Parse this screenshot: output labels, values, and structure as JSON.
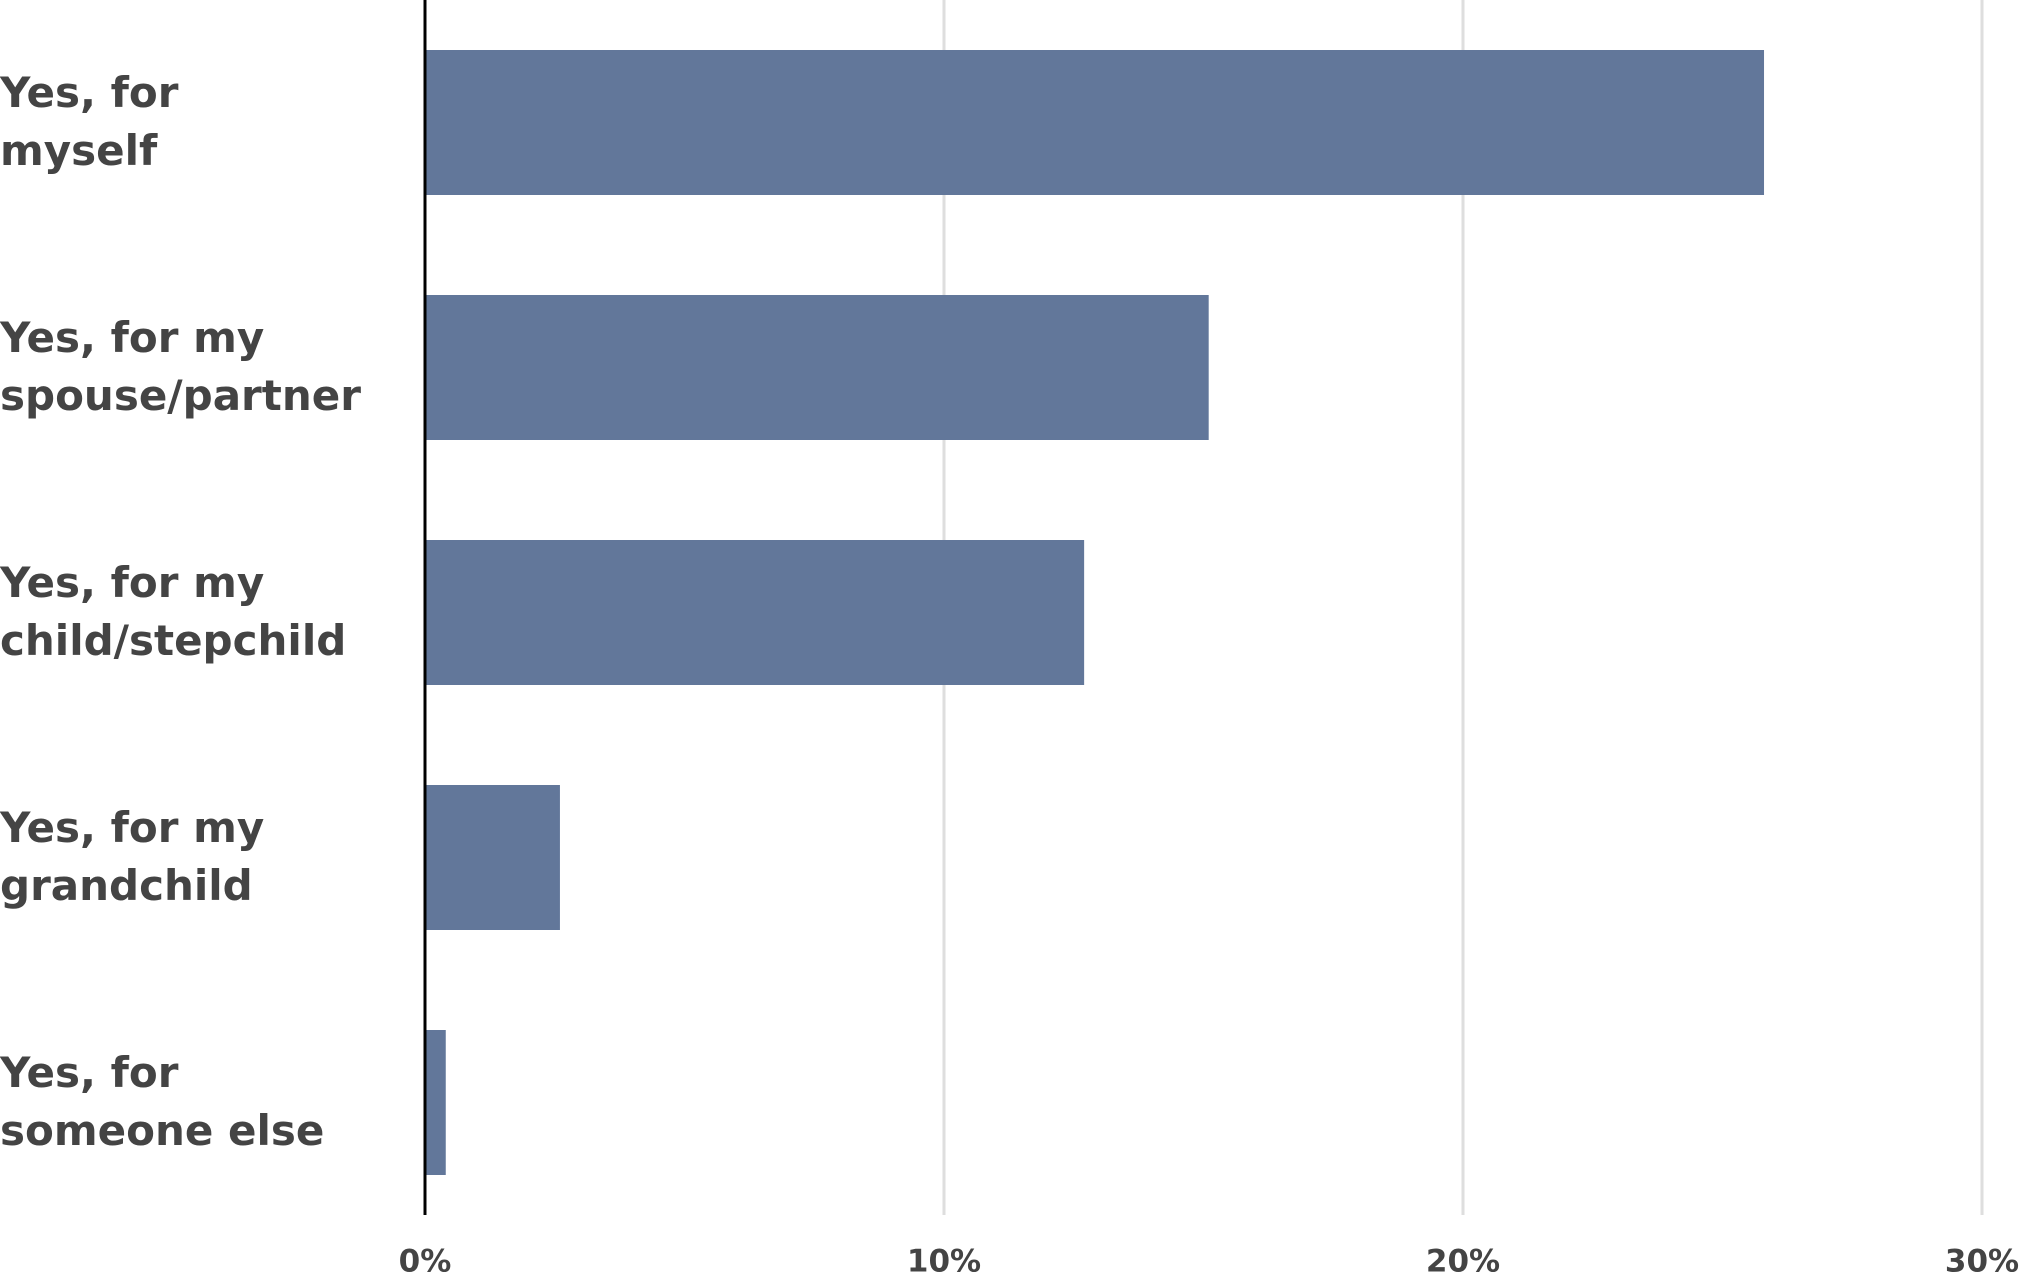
{
  "chart_data": {
    "type": "barh",
    "categories": [
      "Yes, for\nmyself",
      "Yes, for my\nspouse/partner",
      "Yes, for my\nchild/stepchild",
      "Yes, for my\ngrandchild",
      "Yes, for\nsomeone else"
    ],
    "values": [
      25.8,
      15.1,
      12.7,
      2.6,
      0.4
    ],
    "color": "#62779a",
    "xlim": [
      0,
      30
    ],
    "xticks": [
      {
        "value": 0,
        "label": "0%"
      },
      {
        "value": 10,
        "label": "10%"
      },
      {
        "value": 20,
        "label": "20%"
      },
      {
        "value": 30,
        "label": "30%"
      }
    ],
    "grid": true
  }
}
